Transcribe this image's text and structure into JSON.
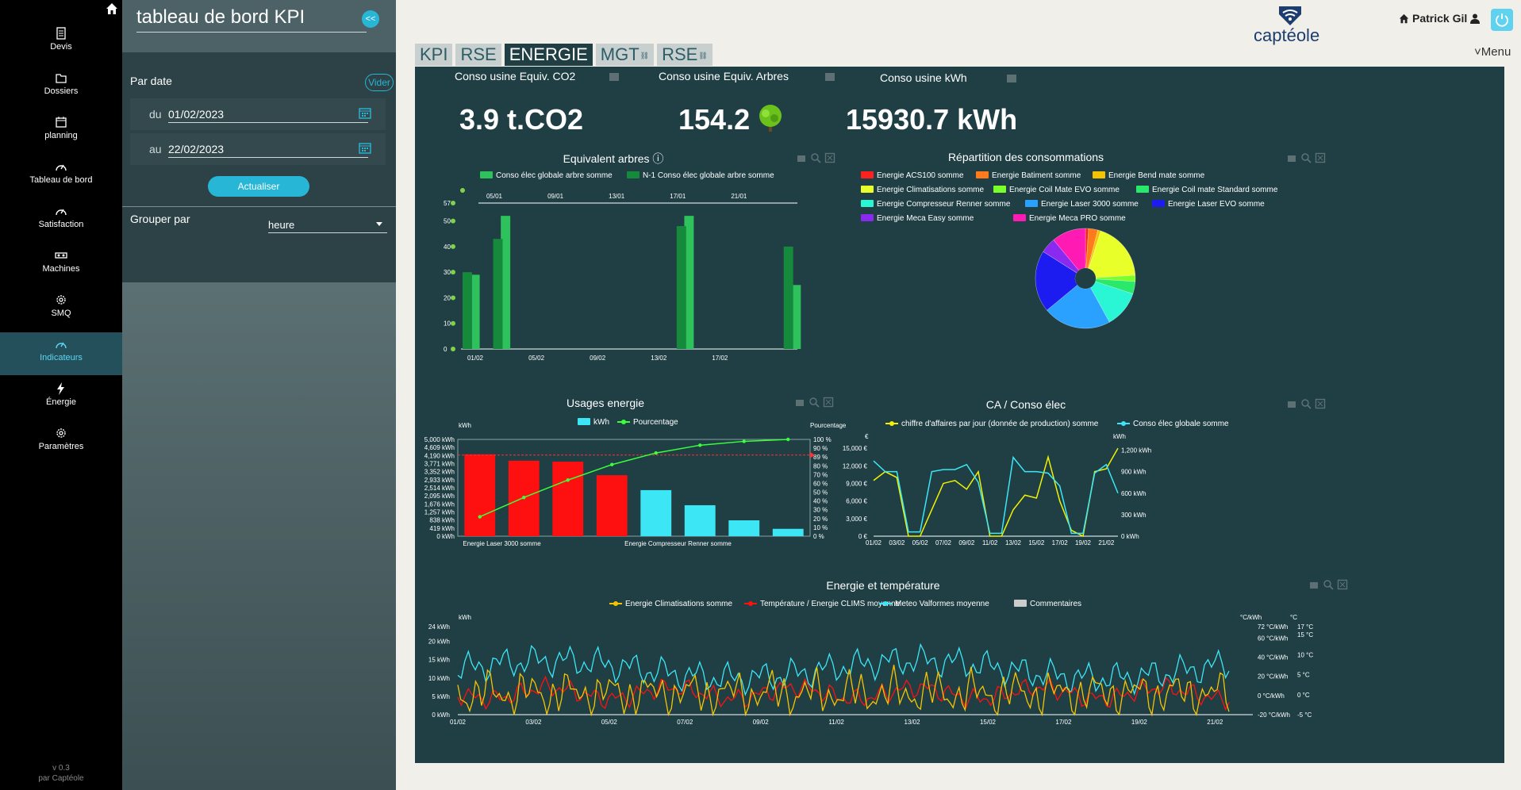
{
  "nav": {
    "items": [
      {
        "label": "Devis",
        "icon": "document-icon"
      },
      {
        "label": "Dossiers",
        "icon": "folder-icon"
      },
      {
        "label": "planning",
        "icon": "calendar-icon"
      },
      {
        "label": "Tableau de bord",
        "icon": "gauge-icon"
      },
      {
        "label": "Satisfaction",
        "icon": "gauge-icon"
      },
      {
        "label": "Machines",
        "icon": "machine-icon"
      },
      {
        "label": "SMQ",
        "icon": "gear-icon"
      },
      {
        "label": "Indicateurs",
        "icon": "gauge-icon"
      },
      {
        "label": "Énergie",
        "icon": "lightning-icon"
      },
      {
        "label": "Paramètres",
        "icon": "gear-icon"
      }
    ],
    "active": "Indicateurs",
    "version": "v 0.3",
    "by": "par Captéole"
  },
  "panel": {
    "title": "tableau de bord KPI",
    "collapse": "<<",
    "by_date": "Par date",
    "clear": "Vider",
    "from_prefix": "du",
    "from_value": "01/02/2023",
    "to_prefix": "au",
    "to_value": "22/02/2023",
    "refresh": "Actualiser",
    "group_by": "Grouper par",
    "group_value": "heure"
  },
  "tabs": [
    "KPI",
    "RSE",
    "ENERGIE",
    "MGT",
    "RSE"
  ],
  "active_tab": "ENERGIE",
  "header": {
    "logo": "captéole",
    "user": "Patrick Gil",
    "menu": "Menu"
  },
  "kpis": [
    {
      "title": "Conso usine Equiv. CO2",
      "value": "3.9 t.CO2"
    },
    {
      "title": "Conso usine Equiv. Arbres",
      "value": "154.2"
    },
    {
      "title": "Conso usine kWh",
      "value": "15930.7 kWh"
    }
  ],
  "colors": {
    "accent": "#28b6d6",
    "panel": "#1f3f45"
  },
  "chart_data": [
    {
      "type": "bar",
      "title": "Equivalent arbres",
      "series": [
        {
          "name": "Conso élec globale arbre somme",
          "color": "#2ec25c",
          "values": [
            29,
            0,
            52,
            0,
            0,
            0,
            0,
            0,
            0,
            0,
            0,
            0,
            0,
            0,
            52,
            0,
            0,
            0,
            0,
            0,
            0,
            25
          ]
        },
        {
          "name": "N-1 Conso élec globale arbre somme",
          "color": "#158a3c",
          "values": [
            30,
            0,
            43,
            0,
            0,
            0,
            0,
            0,
            0,
            0,
            0,
            0,
            0,
            0,
            48,
            0,
            0,
            0,
            0,
            0,
            0,
            40
          ]
        }
      ],
      "x_ticks_bottom": [
        "01/02",
        "05/02",
        "09/02",
        "13/02",
        "17/02"
      ],
      "x_ticks_top": [
        "05/01",
        "09/01",
        "13/01",
        "17/01",
        "21/01"
      ],
      "y_ticks": [
        0,
        10,
        20,
        30,
        40,
        50,
        57
      ],
      "ylim": [
        0,
        57
      ]
    },
    {
      "type": "pie",
      "title": "Répartition des consommations",
      "slices": [
        {
          "name": "Energie ACS100 somme",
          "color": "#ff2020",
          "value": 1
        },
        {
          "name": "Energie Batiment somme",
          "color": "#ff7a1a",
          "value": 3
        },
        {
          "name": "Energie Bend mate somme",
          "color": "#f5c400",
          "value": 1
        },
        {
          "name": "Energie Climatisations somme",
          "color": "#e8ff2a",
          "value": 19
        },
        {
          "name": "Energie Coil Mate EVO somme",
          "color": "#7aff2a",
          "value": 2
        },
        {
          "name": "Energie Coil mate Standard somme",
          "color": "#2ae86a",
          "value": 4
        },
        {
          "name": "Energie Compresseur Renner somme",
          "color": "#2af5d5",
          "value": 12
        },
        {
          "name": "Energie Laser 3000 somme",
          "color": "#2aa0ff",
          "value": 22
        },
        {
          "name": "Energie Laser EVO somme",
          "color": "#1c1cf0",
          "value": 20
        },
        {
          "name": "Energie Meca Easy somme",
          "color": "#8a2af0",
          "value": 5
        },
        {
          "name": "Energie Meca PRO somme",
          "color": "#ff1ab4",
          "value": 11
        }
      ]
    },
    {
      "type": "bar",
      "title": "Usages energie",
      "series": [
        {
          "name": "kWh",
          "color": "#3ce6f5",
          "values": [
            4230,
            3900,
            3850,
            3150,
            2380,
            1600,
            820,
            380
          ],
          "bar_colors": [
            "#ff1010",
            "#ff1010",
            "#ff1010",
            "#ff1010",
            "#3ce6f5",
            "#3ce6f5",
            "#3ce6f5",
            "#3ce6f5"
          ]
        },
        {
          "name": "Pourcentage",
          "color": "#3cff3c",
          "values": [
            20,
            40,
            58,
            74,
            86,
            94,
            98,
            100
          ]
        }
      ],
      "categories_labels": [
        "Energie Laser 3000 somme",
        "Energie Compresseur Renner somme"
      ],
      "ylabel": "kWh",
      "y2label": "Pourcentage",
      "y_ticks": [
        "0 kWh",
        "419 kWh",
        "838 kWh",
        "1,257 kWh",
        "1,676 kWh",
        "2,095 kWh",
        "2,514 kWh",
        "2,933 kWh",
        "3,352 kWh",
        "3,771 kWh",
        "4,190 kWh",
        "4,609 kWh",
        "5,000 kWh"
      ],
      "y2_ticks": [
        "0 %",
        "10 %",
        "20 %",
        "30 %",
        "40 %",
        "50 %",
        "60 %",
        "70 %",
        "80 %",
        "89 %",
        "90 %",
        "100 %"
      ],
      "ylim": [
        0,
        5000
      ],
      "y2lim": [
        0,
        100
      ]
    },
    {
      "type": "line",
      "title": "CA / Conso élec",
      "series": [
        {
          "name": "chiffre d'affaires par jour (donnée de production) somme",
          "color": "#f2f200",
          "values": [
            9500,
            11000,
            10000,
            0,
            0,
            4500,
            9000,
            9500,
            8000,
            11000,
            0,
            0,
            4500,
            7000,
            6500,
            13500,
            6000,
            1000,
            0,
            11000,
            11500,
            15000
          ]
        },
        {
          "name": "Conso élec globale somme",
          "color": "#3ce6f5",
          "values": [
            1050,
            900,
            900,
            60,
            60,
            900,
            930,
            930,
            1000,
            750,
            40,
            40,
            1100,
            900,
            900,
            880,
            700,
            40,
            40,
            880,
            1000,
            600
          ]
        }
      ],
      "x_ticks": [
        "01/02",
        "03/02",
        "05/02",
        "07/02",
        "09/02",
        "11/02",
        "13/02",
        "15/02",
        "17/02",
        "19/02",
        "21/02"
      ],
      "ylabel": "€",
      "y2label": "kWh",
      "y_ticks": [
        "0 €",
        "3,000 €",
        "6,000 €",
        "9,000 €",
        "12,000 €",
        "15,000 €"
      ],
      "y2_ticks": [
        "0 kWh",
        "300 kWh",
        "600 kWh",
        "900 kWh",
        "1,200 kWh"
      ],
      "ylim": [
        0,
        16500
      ],
      "y2lim": [
        0,
        1350
      ]
    },
    {
      "type": "line",
      "title": "Energie et température",
      "series": [
        {
          "name": "Energie Climatisations somme",
          "color": "#f5c400"
        },
        {
          "name": "Température / Energie CLIMS moyenne",
          "color": "#ff1010"
        },
        {
          "name": "Meteo Valformes moyenne",
          "color": "#3ce6f5"
        },
        {
          "name": "Commentaires",
          "color": "#cccccc"
        }
      ],
      "x_ticks": [
        "01/02",
        "03/02",
        "05/02",
        "07/02",
        "09/02",
        "11/02",
        "13/02",
        "15/02",
        "17/02",
        "19/02",
        "21/02"
      ],
      "ylabel": "kWh",
      "y2label": "°C/kWh",
      "y3label": "°C",
      "y_ticks": [
        "0 kWh",
        "5 kWh",
        "10 kWh",
        "15 kWh",
        "20 kWh",
        "24 kWh"
      ],
      "y2_ticks": [
        "-20 °C/kWh",
        "0 °C/kWh",
        "20 °C/kWh",
        "40 °C/kWh",
        "60 °C/kWh",
        "72 °C/kWh"
      ],
      "y3_ticks": [
        "-5 °C",
        "0 °C",
        "5 °C",
        "10 °C",
        "15 °C",
        "17 °C"
      ],
      "ylim": [
        0,
        24
      ]
    }
  ]
}
